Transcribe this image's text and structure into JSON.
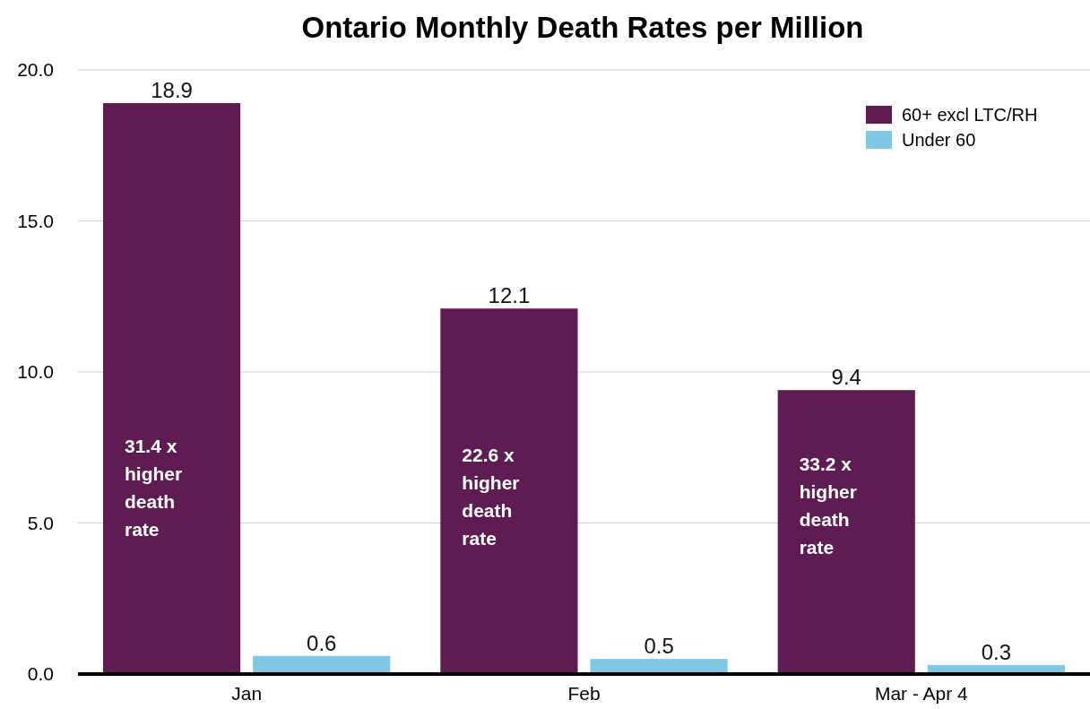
{
  "chart_data": {
    "type": "bar",
    "title": "Ontario Monthly Death Rates per Million",
    "categories": [
      "Jan",
      "Feb",
      "Mar - Apr 4"
    ],
    "series": [
      {
        "name": "60+ excl LTC/RH",
        "color": "#5e1c52",
        "values": [
          18.9,
          12.1,
          9.4
        ]
      },
      {
        "name": "Under 60",
        "color": "#7ec8e3",
        "values": [
          0.6,
          0.5,
          0.3
        ]
      }
    ],
    "ylim": [
      0,
      20
    ],
    "yticks": [
      {
        "value": 0,
        "label": "0.0"
      },
      {
        "value": 5,
        "label": "5.0"
      },
      {
        "value": 10,
        "label": "10.0"
      },
      {
        "value": 15,
        "label": "15.0"
      },
      {
        "value": 20,
        "label": "20.0"
      }
    ],
    "grid": "y",
    "legend": "top right",
    "data_labels": true,
    "annotations": [
      "31.4 x higher death rate",
      "22.6 x higher death rate",
      "33.2 x higher death rate"
    ]
  }
}
